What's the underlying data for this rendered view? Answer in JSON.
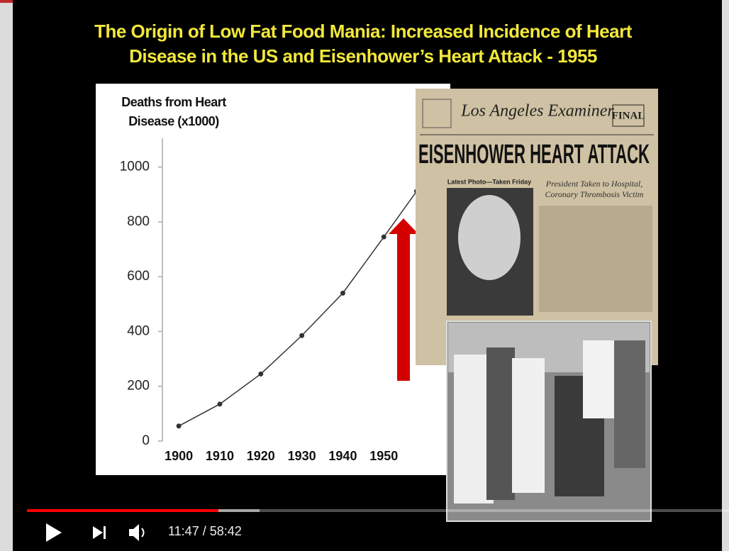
{
  "slide": {
    "title_lines": [
      "The Origin of Low Fat Food Mania: Increased Incidence of Heart",
      "Disease in the US and Eisenhower’s Heart Attack - 1955"
    ]
  },
  "chart_data": {
    "type": "line",
    "y_label_lines": [
      "Deaths from Heart",
      "Disease (x1000)"
    ],
    "x": [
      1900,
      1910,
      1920,
      1930,
      1940,
      1950,
      1958
    ],
    "values": [
      55,
      135,
      245,
      385,
      540,
      745,
      912
    ],
    "color": "#333333",
    "xlim": [
      1896,
      1965
    ],
    "xticks": [
      1900,
      1910,
      1920,
      1930,
      1940,
      1950
    ],
    "ylim": [
      0,
      1100
    ],
    "yticks": [
      0,
      200,
      400,
      600,
      800,
      1000
    ]
  },
  "newspaper": {
    "masthead": "Los Angeles Examiner",
    "edition": "FINAL",
    "headline": "EISENHOWER HEART ATTACK",
    "photo_caption": "Latest Photo—Taken Friday",
    "subhead_lines": [
      "President Taken to Hospital,",
      "Coronary Thrombosis Victim"
    ]
  },
  "player": {
    "time": "11:47 / 58:42"
  }
}
